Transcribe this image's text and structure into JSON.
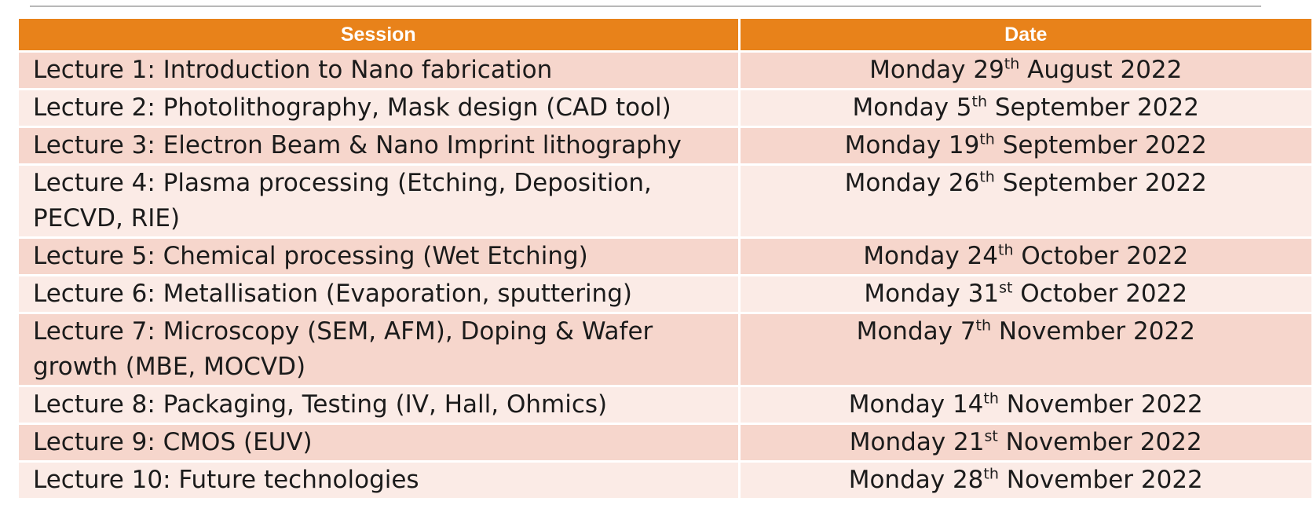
{
  "table": {
    "headers": {
      "session": "Session",
      "date": "Date"
    },
    "rows": [
      {
        "session": "Lecture 1: Introduction to Nano fabrication",
        "date": {
          "pre": "Monday 29",
          "sup": "th",
          "post": " August 2022"
        }
      },
      {
        "session": "Lecture 2: Photolithography, Mask design (CAD tool)",
        "date": {
          "pre": "Monday 5",
          "sup": "th",
          "post": " September 2022"
        }
      },
      {
        "session": "Lecture 3: Electron Beam & Nano Imprint lithography",
        "date": {
          "pre": "Monday 19",
          "sup": "th",
          "post": " September 2022"
        }
      },
      {
        "session": "Lecture 4: Plasma processing (Etching, Deposition, PECVD, RIE)",
        "date": {
          "pre": "Monday 26",
          "sup": "th",
          "post": " September 2022"
        }
      },
      {
        "session": "Lecture 5: Chemical processing (Wet Etching)",
        "date": {
          "pre": "Monday 24",
          "sup": "th",
          "post": " October 2022"
        }
      },
      {
        "session": "Lecture 6: Metallisation (Evaporation, sputtering)",
        "date": {
          "pre": "Monday 31",
          "sup": "st",
          "post": " October 2022"
        }
      },
      {
        "session": "Lecture 7: Microscopy (SEM, AFM), Doping & Wafer growth (MBE, MOCVD)",
        "date": {
          "pre": "Monday 7",
          "sup": "th",
          "post": " November 2022"
        }
      },
      {
        "session": "Lecture 8: Packaging, Testing (IV, Hall, Ohmics)",
        "date": {
          "pre": "Monday 14",
          "sup": "th",
          "post": " November 2022"
        }
      },
      {
        "session": "Lecture 9: CMOS (EUV)",
        "date": {
          "pre": "Monday 21",
          "sup": "st",
          "post": " November 2022"
        }
      },
      {
        "session": "Lecture 10: Future technologies",
        "date": {
          "pre": "Monday 28",
          "sup": "th",
          "post": " November 2022"
        }
      }
    ]
  },
  "colors": {
    "header_bg": "#e8821a",
    "row_dark": "#f6d6cc",
    "row_light": "#fbebe6"
  }
}
